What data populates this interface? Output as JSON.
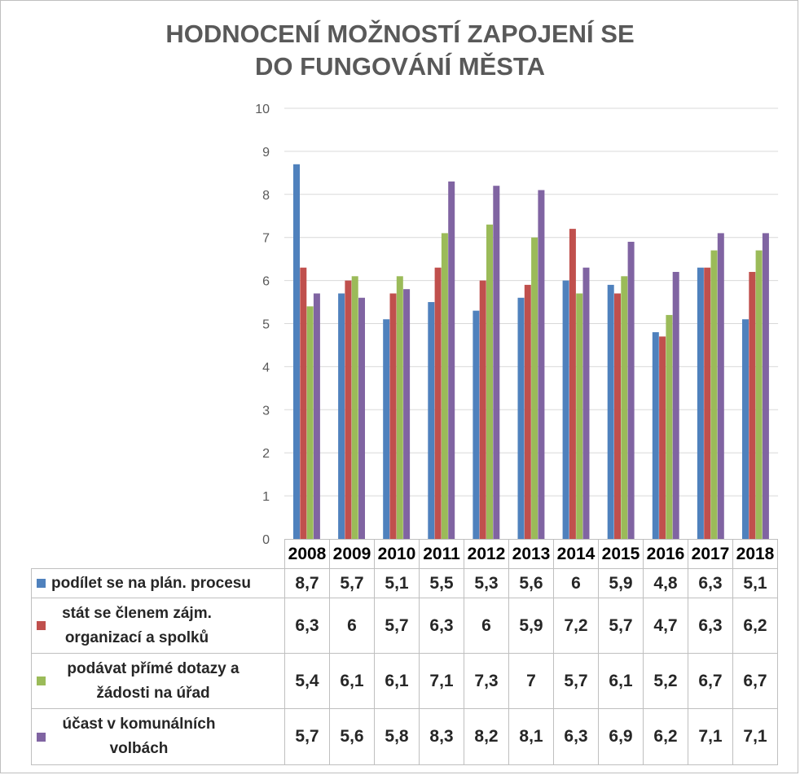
{
  "chart_data": {
    "type": "bar",
    "title": "HODNOCENÍ MOŽNOSTÍ ZAPOJENÍ SE\nDO FUNGOVÁNÍ MĚSTA",
    "categories": [
      "2008",
      "2009",
      "2010",
      "2011",
      "2012",
      "2013",
      "2014",
      "2015",
      "2016",
      "2017",
      "2018"
    ],
    "series": [
      {
        "name": "podílet se na plán. procesu",
        "color": "#4f81bd",
        "values": [
          8.7,
          5.7,
          5.1,
          5.5,
          5.3,
          5.6,
          6,
          5.9,
          4.8,
          6.3,
          5.1
        ],
        "labels": [
          "8,7",
          "5,7",
          "5,1",
          "5,5",
          "5,3",
          "5,6",
          "6",
          "5,9",
          "4,8",
          "6,3",
          "5,1"
        ]
      },
      {
        "name": "stát se členem zájm. organizací a spolků",
        "color": "#c0504d",
        "values": [
          6.3,
          6,
          5.7,
          6.3,
          6,
          5.9,
          7.2,
          5.7,
          4.7,
          6.3,
          6.2
        ],
        "labels": [
          "6,3",
          "6",
          "5,7",
          "6,3",
          "6",
          "5,9",
          "7,2",
          "5,7",
          "4,7",
          "6,3",
          "6,2"
        ]
      },
      {
        "name": "podávat přímé dotazy a žádosti na úřad",
        "color": "#9bbb59",
        "values": [
          5.4,
          6.1,
          6.1,
          7.1,
          7.3,
          7,
          5.7,
          6.1,
          5.2,
          6.7,
          6.7
        ],
        "labels": [
          "5,4",
          "6,1",
          "6,1",
          "7,1",
          "7,3",
          "7",
          "5,7",
          "6,1",
          "5,2",
          "6,7",
          "6,7"
        ]
      },
      {
        "name": "účast v komunálních volbách",
        "color": "#8064a2",
        "values": [
          5.7,
          5.6,
          5.8,
          8.3,
          8.2,
          8.1,
          6.3,
          6.9,
          6.2,
          7.1,
          7.1
        ],
        "labels": [
          "5,7",
          "5,6",
          "5,8",
          "8,3",
          "8,2",
          "8,1",
          "6,3",
          "6,9",
          "6,2",
          "7,1",
          "7,1"
        ]
      }
    ],
    "yticks": [
      "0",
      "1",
      "2",
      "3",
      "4",
      "5",
      "6",
      "7",
      "8",
      "9",
      "10"
    ],
    "ylim": [
      0,
      10
    ],
    "grid": true,
    "legend": "data table below chart"
  }
}
